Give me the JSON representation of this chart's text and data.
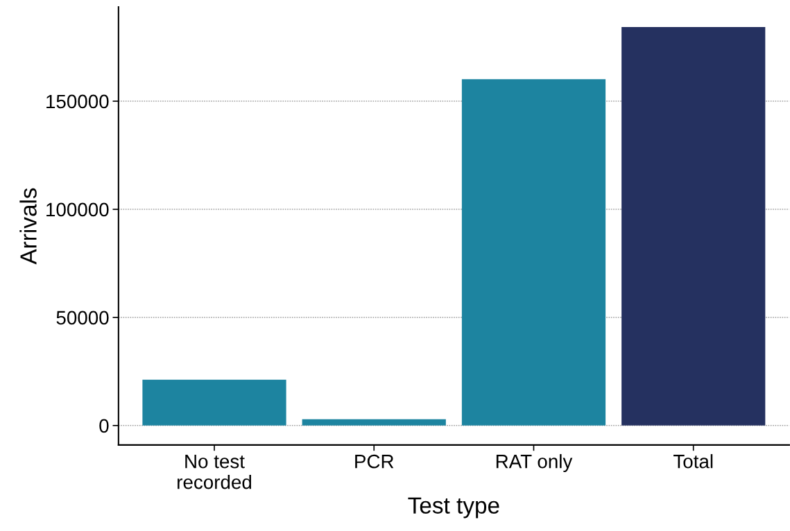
{
  "chart_data": {
    "type": "bar",
    "xlabel": "Test type",
    "ylabel": "Arrivals",
    "categories": [
      "No test\nrecorded",
      "PCR",
      "RAT only",
      "Total"
    ],
    "values": [
      21200,
      2900,
      160200,
      184300
    ],
    "colors": [
      "#1d84a0",
      "#1d84a0",
      "#1d84a0",
      "#253160"
    ],
    "ylim": [
      -9000,
      193600
    ],
    "yticks": [
      0,
      50000,
      100000,
      150000
    ],
    "grid": "y",
    "legend": false
  }
}
